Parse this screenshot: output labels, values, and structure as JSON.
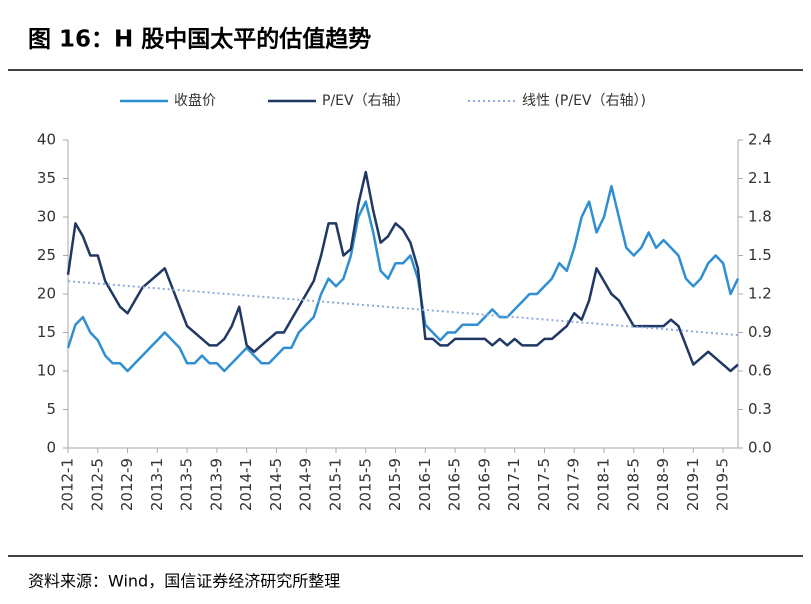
{
  "title": "图 16：H 股中国太平的估值趋势",
  "source": "资料来源：Wind，国信证券经济研究所整理",
  "chart_data": {
    "type": "line",
    "categories": [
      "2012-1",
      null,
      null,
      null,
      "2012-5",
      null,
      null,
      null,
      "2012-9",
      null,
      null,
      null,
      "2013-1",
      null,
      null,
      null,
      "2013-5",
      null,
      null,
      null,
      "2013-9",
      null,
      null,
      null,
      "2014-1",
      null,
      null,
      null,
      "2014-5",
      null,
      null,
      null,
      "2014-9",
      null,
      null,
      null,
      "2015-1",
      null,
      null,
      null,
      "2015-5",
      null,
      null,
      null,
      "2015-9",
      null,
      null,
      null,
      "2016-1",
      null,
      null,
      null,
      "2016-5",
      null,
      null,
      null,
      "2016-9",
      null,
      null,
      null,
      "2017-1",
      null,
      null,
      null,
      "2017-5",
      null,
      null,
      null,
      "2017-9",
      null,
      null,
      null,
      "2018-1",
      null,
      null,
      null,
      "2018-5",
      null,
      null,
      null,
      "2018-9",
      null,
      null,
      null,
      "2019-1",
      null,
      null,
      null,
      "2019-5",
      null,
      null
    ],
    "series": [
      {
        "name": "收盘价",
        "color": "#2f8fd3",
        "axis": "y",
        "values": [
          13,
          16,
          17,
          15,
          14,
          12,
          11,
          11,
          10,
          11,
          12,
          13,
          14,
          15,
          14,
          13,
          11,
          11,
          12,
          11,
          11,
          10,
          11,
          12,
          13,
          12,
          11,
          11,
          12,
          13,
          13,
          15,
          16,
          17,
          20,
          22,
          21,
          22,
          25,
          30,
          32,
          28,
          23,
          22,
          24,
          24,
          25,
          22,
          16,
          15,
          14,
          15,
          15,
          16,
          16,
          16,
          17,
          18,
          17,
          17,
          18,
          19,
          20,
          20,
          21,
          22,
          24,
          23,
          26,
          30,
          32,
          28,
          30,
          34,
          30,
          26,
          25,
          26,
          28,
          26,
          27,
          26,
          25,
          22,
          21,
          22,
          24,
          25,
          24,
          20,
          22
        ]
      },
      {
        "name": "P/EV（右轴）",
        "color": "#1f3864",
        "axis": "y2",
        "values": [
          1.35,
          1.75,
          1.65,
          1.5,
          1.5,
          1.3,
          1.2,
          1.1,
          1.05,
          1.15,
          1.25,
          1.3,
          1.35,
          1.4,
          1.25,
          1.1,
          0.95,
          0.9,
          0.85,
          0.8,
          0.8,
          0.85,
          0.95,
          1.1,
          0.8,
          0.75,
          0.8,
          0.85,
          0.9,
          0.9,
          1.0,
          1.1,
          1.2,
          1.3,
          1.5,
          1.75,
          1.75,
          1.5,
          1.55,
          1.9,
          2.15,
          1.85,
          1.6,
          1.65,
          1.75,
          1.7,
          1.6,
          1.4,
          0.85,
          0.85,
          0.8,
          0.8,
          0.85,
          0.85,
          0.85,
          0.85,
          0.85,
          0.8,
          0.85,
          0.8,
          0.85,
          0.8,
          0.8,
          0.8,
          0.85,
          0.85,
          0.9,
          0.95,
          1.05,
          1.0,
          1.15,
          1.4,
          1.3,
          1.2,
          1.15,
          1.05,
          0.95,
          0.95,
          0.95,
          0.95,
          0.95,
          1.0,
          0.95,
          0.8,
          0.65,
          0.7,
          0.75,
          0.7,
          0.65,
          0.6,
          0.65
        ]
      }
    ],
    "trendline": {
      "name": "线性 (P/EV（右轴）)",
      "color": "#8ea9db",
      "axis": "y2",
      "from": 1.3,
      "to": 0.88
    },
    "ylim": [
      0,
      40
    ],
    "yticks": [
      0,
      5,
      10,
      15,
      20,
      25,
      30,
      35,
      40
    ],
    "y2lim": [
      0,
      2.4
    ],
    "y2ticks": [
      {
        "value": 0,
        "label": "0.0"
      },
      0.3,
      0.6,
      0.9,
      1.2,
      1.5,
      1.8,
      2.1,
      2.4
    ],
    "legend": "top"
  }
}
